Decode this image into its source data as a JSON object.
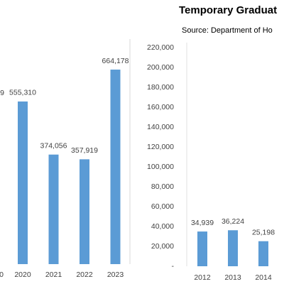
{
  "chart_data": [
    {
      "type": "bar",
      "categories": [
        "2020",
        "2021",
        "2022",
        "2023"
      ],
      "values": [
        555310,
        374056,
        357919,
        664178
      ],
      "value_labels": [
        "555,310",
        "374,056",
        "357,919",
        "664,178"
      ],
      "color": "#5b9bd5",
      "ylim": [
        0,
        800000
      ],
      "annotations": [
        "9",
        "0"
      ]
    },
    {
      "type": "bar",
      "title": "Temporary Graduat",
      "subtitle": "Source: Department of Ho",
      "categories": [
        "2012",
        "2013",
        "2014"
      ],
      "values": [
        34939,
        36224,
        25198
      ],
      "value_labels": [
        "34,939",
        "36,224",
        "25,198"
      ],
      "color": "#5b9bd5",
      "ylim": [
        0,
        220000
      ],
      "yticks": [
        {
          "value": 0,
          "label": "-"
        },
        {
          "value": 20000,
          "label": "20,000"
        },
        {
          "value": 40000,
          "label": "40,000"
        },
        {
          "value": 60000,
          "label": "60,000"
        },
        {
          "value": 80000,
          "label": "80,000"
        },
        {
          "value": 100000,
          "label": "100,000"
        },
        {
          "value": 120000,
          "label": "120,000"
        },
        {
          "value": 140000,
          "label": "140,000"
        },
        {
          "value": 160000,
          "label": "160,000"
        },
        {
          "value": 180000,
          "label": "180,000"
        },
        {
          "value": 200000,
          "label": "200,000"
        },
        {
          "value": 220000,
          "label": "220,000"
        }
      ]
    }
  ]
}
